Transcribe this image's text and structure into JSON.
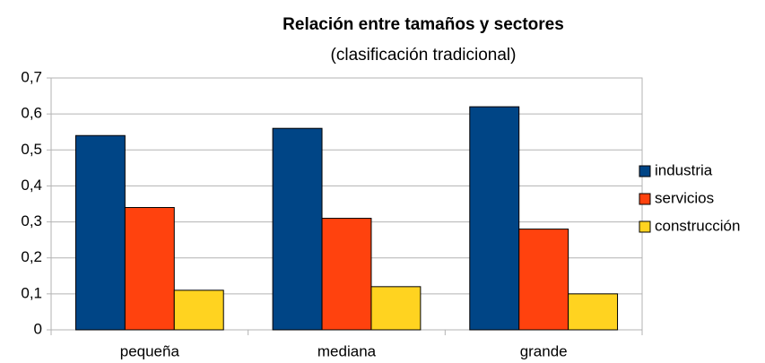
{
  "chart_data": {
    "type": "bar",
    "title": "Relación entre tamaños y sectores",
    "subtitle": "(clasificación tradicional)",
    "categories": [
      "pequeña",
      "mediana",
      "grande"
    ],
    "series": [
      {
        "name": "industria",
        "color": "#004586",
        "values": [
          0.54,
          0.56,
          0.62
        ]
      },
      {
        "name": "servicios",
        "color": "#ff420e",
        "values": [
          0.34,
          0.31,
          0.28
        ]
      },
      {
        "name": "construcción",
        "color": "#ffd320",
        "values": [
          0.11,
          0.12,
          0.1
        ]
      }
    ],
    "ylim": [
      0,
      0.7
    ],
    "yticks": [
      0,
      {
        "value": 0.1,
        "label": "0,1"
      },
      {
        "value": 0.2,
        "label": "0,2"
      },
      {
        "value": 0.3,
        "label": "0,3"
      },
      {
        "value": 0.4,
        "label": "0,4"
      },
      {
        "value": 0.5,
        "label": "0,5"
      },
      {
        "value": 0.6,
        "label": "0,6"
      },
      {
        "value": 0.7,
        "label": "0,7"
      }
    ],
    "grid": true,
    "legend": "right"
  }
}
